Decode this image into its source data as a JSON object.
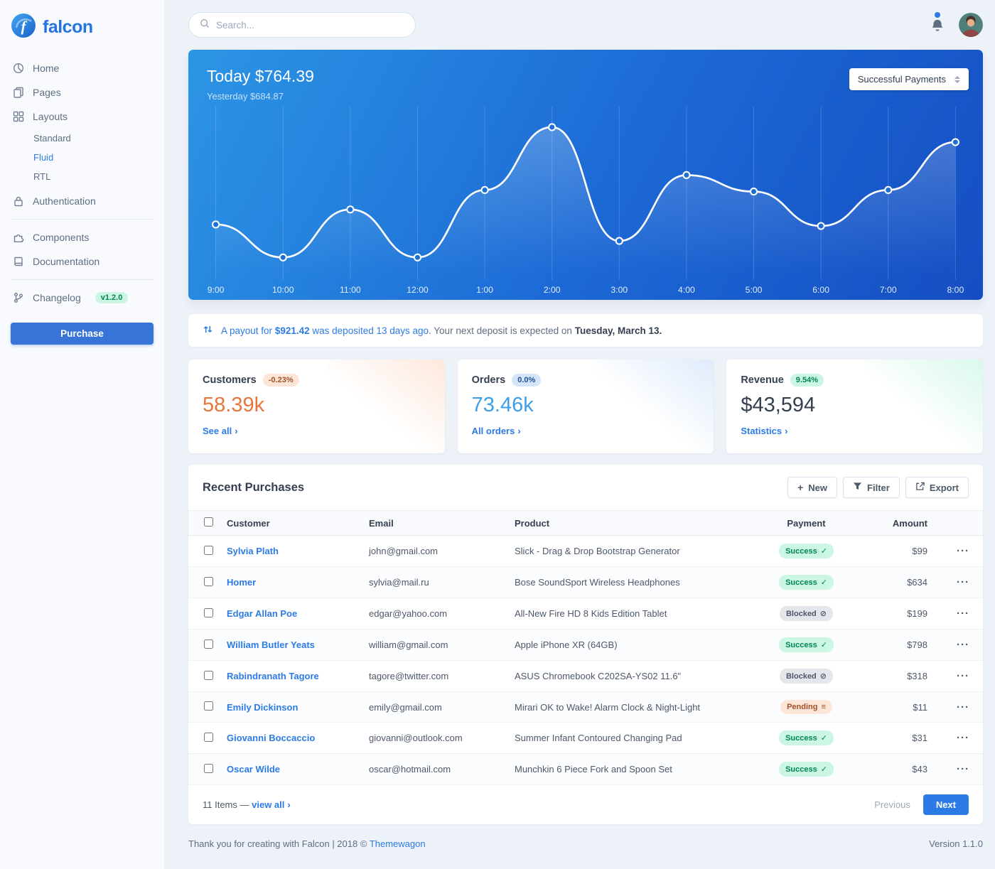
{
  "brand": {
    "name": "falcon"
  },
  "topbar": {
    "search_placeholder": "Search..."
  },
  "sidebar": {
    "items": [
      {
        "label": "Home",
        "icon": "chart-pie-icon"
      },
      {
        "label": "Pages",
        "icon": "copy-icon"
      },
      {
        "label": "Layouts",
        "icon": "grid-icon"
      },
      {
        "label": "Authentication",
        "icon": "lock-icon"
      },
      {
        "label": "Components",
        "icon": "puzzle-icon"
      },
      {
        "label": "Documentation",
        "icon": "book-icon"
      },
      {
        "label": "Changelog",
        "icon": "code-branch-icon",
        "badge": "v1.2.0"
      }
    ],
    "layouts_children": [
      {
        "label": "Standard",
        "active": false
      },
      {
        "label": "Fluid",
        "active": true
      },
      {
        "label": "RTL",
        "active": false
      }
    ],
    "purchase_label": "Purchase"
  },
  "chart_card": {
    "heading": "Today $764.39",
    "subheading": "Yesterday $684.87",
    "select_value": "Successful Payments"
  },
  "chart_data": {
    "type": "line",
    "title": "Today $764.39",
    "subtitle": "Yesterday $684.87",
    "x": [
      "9:00",
      "10:00",
      "11:00",
      "12:00",
      "1:00",
      "2:00",
      "3:00",
      "4:00",
      "5:00",
      "6:00",
      "7:00",
      "8:00"
    ],
    "values": [
      33,
      11,
      43,
      11,
      56,
      98,
      22,
      66,
      55,
      32,
      56,
      88
    ],
    "ylim": [
      0,
      105
    ],
    "grid": "vertical-only",
    "legend": "none",
    "line_color": "#ffffff",
    "background": "blue-gradient"
  },
  "payout": {
    "prefix": "A payout for",
    "amount": "$921.42",
    "deposited_link": "was deposited 13 days ago",
    "middle": ". Your next deposit is expected on",
    "date": "Tuesday, March 13."
  },
  "stats": [
    {
      "title": "Customers",
      "badge": "-0.23%",
      "value": "58.39k",
      "link": "See all"
    },
    {
      "title": "Orders",
      "badge": "0.0%",
      "value": "73.46k",
      "link": "All orders"
    },
    {
      "title": "Revenue",
      "badge": "9.54%",
      "value": "$43,594",
      "link": "Statistics"
    }
  ],
  "purchases": {
    "title": "Recent Purchases",
    "buttons": {
      "new": "New",
      "filter": "Filter",
      "export": "Export"
    },
    "columns": {
      "customer": "Customer",
      "email": "Email",
      "product": "Product",
      "payment": "Payment",
      "amount": "Amount"
    },
    "status_icons": {
      "Success": "✓",
      "Blocked": "⊘",
      "Pending": "≡"
    },
    "rows": [
      {
        "customer": "Sylvia Plath",
        "email": "john@gmail.com",
        "product": "Slick - Drag & Drop Bootstrap Generator",
        "status": "Success",
        "amount": "$99"
      },
      {
        "customer": "Homer",
        "email": "sylvia@mail.ru",
        "product": "Bose SoundSport Wireless Headphones",
        "status": "Success",
        "amount": "$634"
      },
      {
        "customer": "Edgar Allan Poe",
        "email": "edgar@yahoo.com",
        "product": "All-New Fire HD 8 Kids Edition Tablet",
        "status": "Blocked",
        "amount": "$199"
      },
      {
        "customer": "William Butler Yeats",
        "email": "william@gmail.com",
        "product": "Apple iPhone XR (64GB)",
        "status": "Success",
        "amount": "$798"
      },
      {
        "customer": "Rabindranath Tagore",
        "email": "tagore@twitter.com",
        "product": "ASUS Chromebook C202SA-YS02 11.6\"",
        "status": "Blocked",
        "amount": "$318"
      },
      {
        "customer": "Emily Dickinson",
        "email": "emily@gmail.com",
        "product": "Mirari OK to Wake! Alarm Clock & Night-Light",
        "status": "Pending",
        "amount": "$11"
      },
      {
        "customer": "Giovanni Boccaccio",
        "email": "giovanni@outlook.com",
        "product": "Summer Infant Contoured Changing Pad",
        "status": "Success",
        "amount": "$31"
      },
      {
        "customer": "Oscar Wilde",
        "email": "oscar@hotmail.com",
        "product": "Munchkin 6 Piece Fork and Spoon Set",
        "status": "Success",
        "amount": "$43"
      }
    ],
    "footer": {
      "items_label": "11 Items —",
      "view_all": "view all",
      "previous": "Previous",
      "next": "Next"
    }
  },
  "page_footer": {
    "text": "Thank you for creating with Falcon | 2018 ©",
    "link": "Themewagon",
    "version": "Version 1.1.0"
  },
  "colors": {
    "accent": "#2c7be5",
    "customers_value": "#e8763a",
    "orders_value": "#3d9fe8",
    "revenue_value": "#344050",
    "success": "#00864e",
    "pending": "#9d5228",
    "blocked": "#4d5969",
    "chart_gradient_start": "#2c95e5",
    "chart_gradient_end": "#154ec2",
    "changelog_badge": "#00864e"
  }
}
